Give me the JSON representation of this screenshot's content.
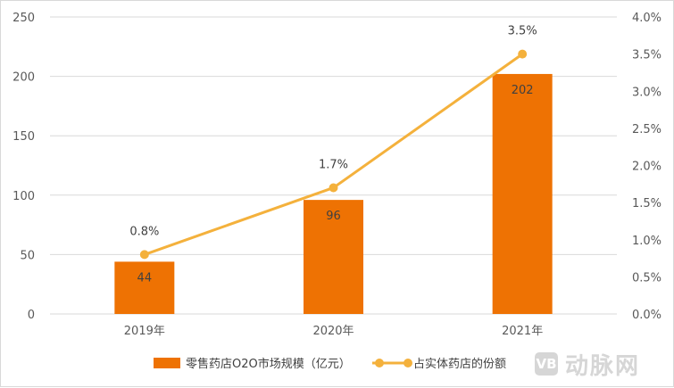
{
  "chart_data": {
    "type": "bar",
    "categories": [
      "2019年",
      "2020年",
      "2021年"
    ],
    "series": [
      {
        "name": "零售药店O2O市场规模（亿元）",
        "type": "bar",
        "axis": "left",
        "values": [
          44,
          96,
          202
        ],
        "labels": [
          "44",
          "96",
          "202"
        ],
        "color": "#EE7203"
      },
      {
        "name": "占实体药店的份额",
        "type": "line",
        "axis": "right",
        "values": [
          0.8,
          1.7,
          3.5
        ],
        "labels": [
          "0.8%",
          "1.7%",
          "3.5%"
        ],
        "color": "#F4B13C"
      }
    ],
    "y_left": {
      "range": [
        0,
        250
      ],
      "ticks": [
        0,
        50,
        100,
        150,
        200,
        250
      ],
      "tick_labels": [
        "0",
        "50",
        "100",
        "150",
        "200",
        "250"
      ]
    },
    "y_right": {
      "range": [
        0,
        4.0
      ],
      "ticks": [
        0,
        0.5,
        1.0,
        1.5,
        2.0,
        2.5,
        3.0,
        3.5,
        4.0
      ],
      "tick_labels": [
        "0.0%",
        "0.5%",
        "1.0%",
        "1.5%",
        "2.0%",
        "2.5%",
        "3.0%",
        "3.5%",
        "4.0%"
      ]
    },
    "grid": true,
    "legend_position": "bottom",
    "colors": {
      "bar": "#EE7203",
      "line": "#F4B13C",
      "grid": "#d9d9d9",
      "text": "#595959"
    }
  },
  "watermark": {
    "logo": "VB",
    "text": "动脉网"
  }
}
